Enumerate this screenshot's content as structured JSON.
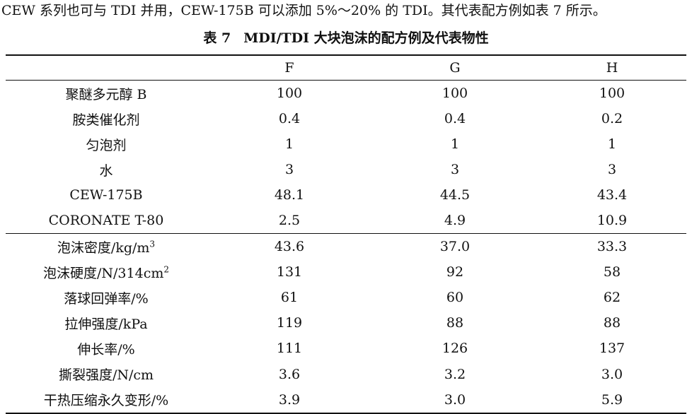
{
  "intro": "CEW 系列也可与 TDI 并用，CEW-175B 可以添加 5%～20% 的 TDI。其代表配方例如表 7 所示。",
  "caption": {
    "number": "表 7",
    "title": "MDI/TDI 大块泡沫的配方例及代表物性"
  },
  "table": {
    "columns": [
      "",
      "F",
      "G",
      "H"
    ],
    "formulation_rows": [
      {
        "label": "聚醚多元醇 B",
        "values": [
          "100",
          "100",
          "100"
        ]
      },
      {
        "label": "胺类催化剂",
        "values": [
          "0.4",
          "0.4",
          "0.2"
        ]
      },
      {
        "label": "匀泡剂",
        "values": [
          "1",
          "1",
          "1"
        ]
      },
      {
        "label": "水",
        "values": [
          "3",
          "3",
          "3"
        ]
      },
      {
        "label": "CEW-175B",
        "values": [
          "48.1",
          "44.5",
          "43.4"
        ]
      },
      {
        "label": "CORONATE T-80",
        "values": [
          "2.5",
          "4.9",
          "10.9"
        ]
      }
    ],
    "property_rows": [
      {
        "label": "泡沫密度/kg/m",
        "sup": "3",
        "values": [
          "43.6",
          "37.0",
          "33.3"
        ]
      },
      {
        "label": "泡沫硬度/N/314cm",
        "sup": "2",
        "values": [
          "131",
          "92",
          "58"
        ]
      },
      {
        "label": "落球回弹率/%",
        "values": [
          "61",
          "60",
          "62"
        ]
      },
      {
        "label": "拉伸强度/kPa",
        "values": [
          "119",
          "88",
          "88"
        ]
      },
      {
        "label": "伸长率/%",
        "values": [
          "111",
          "126",
          "137"
        ]
      },
      {
        "label": "撕裂强度/N/cm",
        "values": [
          "3.6",
          "3.2",
          "3.0"
        ]
      },
      {
        "label": "干热压缩永久变形/%",
        "values": [
          "3.9",
          "3.0",
          "5.9"
        ]
      }
    ]
  }
}
